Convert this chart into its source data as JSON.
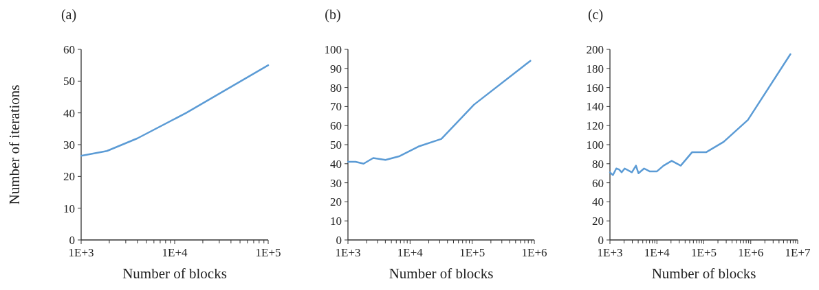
{
  "chart_data": [
    {
      "type": "line",
      "title": "(a)",
      "xlabel": "Number of blocks",
      "ylabel": "Number of iterations",
      "log": "x",
      "grid": false,
      "marker": "none",
      "line_style": "solid",
      "series": [
        {
          "color": "#5b9bd5",
          "x": [
            1000,
            1884,
            4000,
            13300,
            100000
          ],
          "values": [
            26.5,
            28,
            32,
            40,
            55
          ]
        }
      ],
      "xlim": [
        1000,
        100000
      ],
      "ylim": [
        0,
        60
      ],
      "yticks": [
        0,
        10,
        20,
        30,
        40,
        50,
        60
      ],
      "xticks": [
        {
          "value": 1000,
          "label": "1E+3"
        },
        {
          "value": 2000,
          "label": null
        },
        {
          "value": 3000,
          "label": null
        },
        {
          "value": 4000,
          "label": null
        },
        {
          "value": 5000,
          "label": null
        },
        {
          "value": 6000,
          "label": null
        },
        {
          "value": 7000,
          "label": null
        },
        {
          "value": 8000,
          "label": null
        },
        {
          "value": 9000,
          "label": null
        },
        {
          "value": 10000,
          "label": "1E+4"
        },
        {
          "value": 20000,
          "label": null
        },
        {
          "value": 30000,
          "label": null
        },
        {
          "value": 40000,
          "label": null
        },
        {
          "value": 50000,
          "label": null
        },
        {
          "value": 60000,
          "label": null
        },
        {
          "value": 70000,
          "label": null
        },
        {
          "value": 80000,
          "label": null
        },
        {
          "value": 90000,
          "label": null
        },
        {
          "value": 100000,
          "label": "1E+5"
        }
      ]
    },
    {
      "type": "line",
      "title": "(b)",
      "xlabel": "Number of blocks",
      "log": "x",
      "grid": false,
      "marker": "none",
      "line_style": "solid",
      "series": [
        {
          "color": "#5b9bd5",
          "x": [
            1000,
            1325,
            1785,
            2550,
            4020,
            6810,
            13600,
            31900,
            107000,
            865000
          ],
          "values": [
            41,
            41,
            40,
            43,
            42,
            44,
            49,
            53,
            71,
            94
          ]
        }
      ],
      "xlim": [
        1000,
        1000000
      ],
      "ylim": [
        0,
        100
      ],
      "yticks": [
        0,
        10,
        20,
        30,
        40,
        50,
        60,
        70,
        80,
        90,
        100
      ],
      "xticks": [
        {
          "value": 1000,
          "label": "1E+3"
        },
        {
          "value": 2000,
          "label": null
        },
        {
          "value": 3000,
          "label": null
        },
        {
          "value": 4000,
          "label": null
        },
        {
          "value": 5000,
          "label": null
        },
        {
          "value": 6000,
          "label": null
        },
        {
          "value": 7000,
          "label": null
        },
        {
          "value": 8000,
          "label": null
        },
        {
          "value": 9000,
          "label": null
        },
        {
          "value": 10000,
          "label": "1E+4"
        },
        {
          "value": 20000,
          "label": null
        },
        {
          "value": 30000,
          "label": null
        },
        {
          "value": 40000,
          "label": null
        },
        {
          "value": 50000,
          "label": null
        },
        {
          "value": 60000,
          "label": null
        },
        {
          "value": 70000,
          "label": null
        },
        {
          "value": 80000,
          "label": null
        },
        {
          "value": 90000,
          "label": null
        },
        {
          "value": 100000,
          "label": "1E+5"
        },
        {
          "value": 200000,
          "label": null
        },
        {
          "value": 300000,
          "label": null
        },
        {
          "value": 400000,
          "label": null
        },
        {
          "value": 500000,
          "label": null
        },
        {
          "value": 600000,
          "label": null
        },
        {
          "value": 700000,
          "label": null
        },
        {
          "value": 800000,
          "label": null
        },
        {
          "value": 900000,
          "label": null
        },
        {
          "value": 1000000,
          "label": "1E+6"
        }
      ]
    },
    {
      "type": "line",
      "title": "(c)",
      "xlabel": "Number of blocks",
      "log": "x",
      "grid": false,
      "marker": "none",
      "line_style": "solid",
      "series": [
        {
          "color": "#5b9bd5",
          "x": [
            1000,
            1155,
            1365,
            1560,
            1780,
            2060,
            2930,
            3580,
            4050,
            5340,
            6970,
            10050,
            13870,
            20700,
            32200,
            56100,
            111700,
            265000,
            871000,
            7000000
          ],
          "values": [
            71,
            68,
            75,
            74,
            71,
            75,
            71,
            78,
            70,
            75,
            72,
            72,
            78,
            83,
            78,
            92,
            92,
            103,
            126,
            195
          ]
        }
      ],
      "xlim": [
        1000,
        10000000
      ],
      "ylim": [
        0,
        200
      ],
      "yticks": [
        0,
        20,
        40,
        60,
        80,
        100,
        120,
        140,
        160,
        180,
        200
      ],
      "xticks": [
        {
          "value": 1000,
          "label": "1E+3"
        },
        {
          "value": 2000,
          "label": null
        },
        {
          "value": 3000,
          "label": null
        },
        {
          "value": 4000,
          "label": null
        },
        {
          "value": 5000,
          "label": null
        },
        {
          "value": 6000,
          "label": null
        },
        {
          "value": 7000,
          "label": null
        },
        {
          "value": 8000,
          "label": null
        },
        {
          "value": 9000,
          "label": null
        },
        {
          "value": 10000,
          "label": "1E+4"
        },
        {
          "value": 20000,
          "label": null
        },
        {
          "value": 30000,
          "label": null
        },
        {
          "value": 40000,
          "label": null
        },
        {
          "value": 50000,
          "label": null
        },
        {
          "value": 60000,
          "label": null
        },
        {
          "value": 70000,
          "label": null
        },
        {
          "value": 80000,
          "label": null
        },
        {
          "value": 90000,
          "label": null
        },
        {
          "value": 100000,
          "label": "1E+5"
        },
        {
          "value": 200000,
          "label": null
        },
        {
          "value": 300000,
          "label": null
        },
        {
          "value": 400000,
          "label": null
        },
        {
          "value": 500000,
          "label": null
        },
        {
          "value": 600000,
          "label": null
        },
        {
          "value": 700000,
          "label": null
        },
        {
          "value": 800000,
          "label": null
        },
        {
          "value": 900000,
          "label": null
        },
        {
          "value": 1000000,
          "label": "1E+6"
        },
        {
          "value": 2000000,
          "label": null
        },
        {
          "value": 3000000,
          "label": null
        },
        {
          "value": 4000000,
          "label": null
        },
        {
          "value": 5000000,
          "label": null
        },
        {
          "value": 6000000,
          "label": null
        },
        {
          "value": 7000000,
          "label": null
        },
        {
          "value": 8000000,
          "label": null
        },
        {
          "value": 9000000,
          "label": null
        },
        {
          "value": 10000000,
          "label": "1E+7"
        }
      ]
    }
  ]
}
